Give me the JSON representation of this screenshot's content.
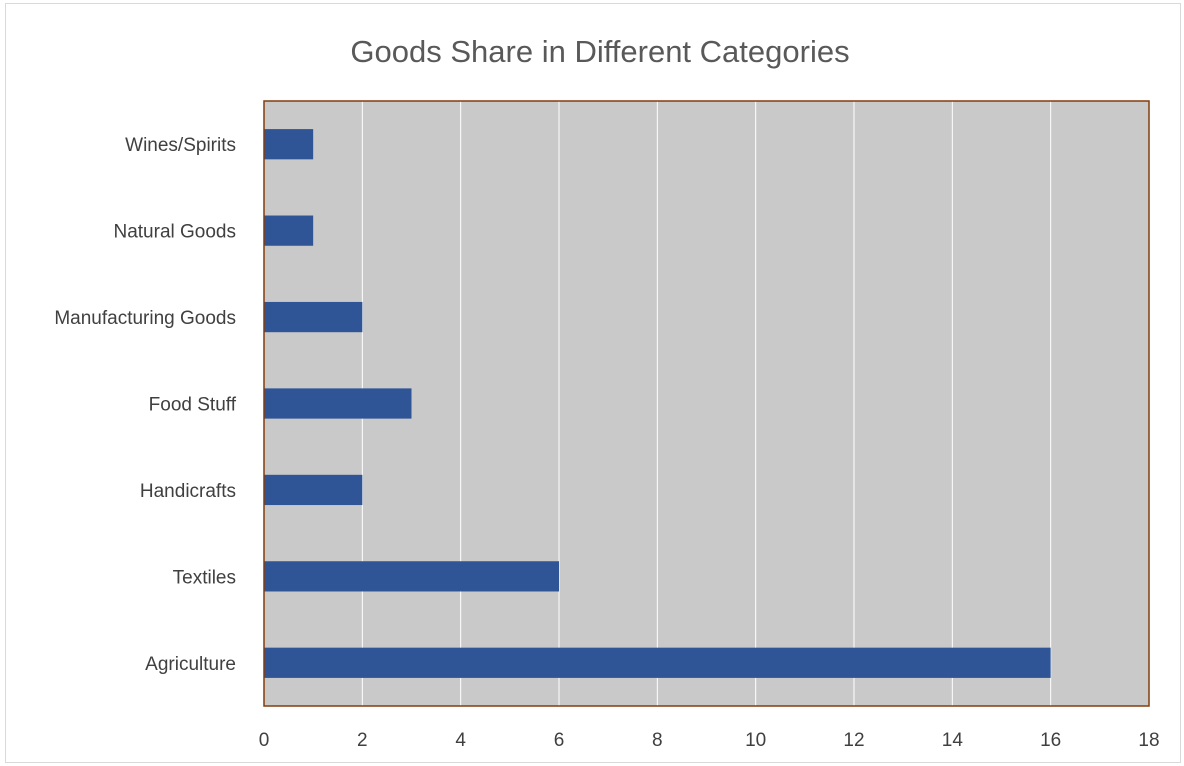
{
  "chart_data": {
    "type": "bar",
    "orientation": "horizontal",
    "title": "Goods Share in Different Categories",
    "xlabel": "",
    "ylabel": "",
    "categories": [
      "Wines/Spirits",
      "Natural Goods",
      "Manufacturing Goods",
      "Food Stuff",
      "Handicrafts",
      "Textiles",
      "Agriculture"
    ],
    "values": [
      1,
      1,
      2,
      3,
      2,
      6,
      16
    ],
    "xlim": [
      0,
      18
    ],
    "x_ticks": [
      0,
      2,
      4,
      6,
      8,
      10,
      12,
      14,
      16,
      18
    ],
    "grid": true,
    "legend": "none",
    "colors": {
      "bar": "#2f5597",
      "plot_background": "#c9c9c9",
      "plot_border": "#843c0c",
      "gridline": "#ffffff",
      "title_text": "#595959",
      "label_text": "#404040"
    }
  }
}
